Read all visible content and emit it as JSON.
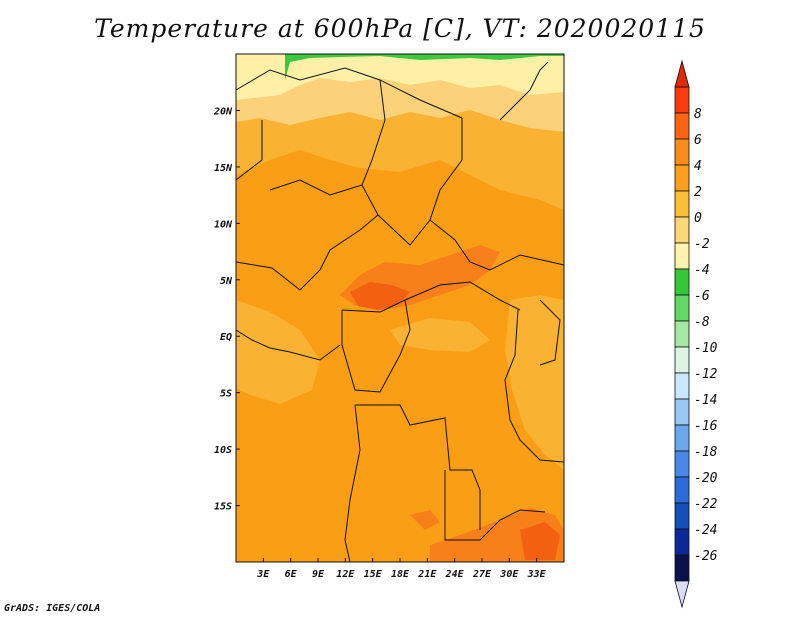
{
  "title": "Temperature at 600hPa [C], VT: 2020020115",
  "credit": "GrADS: IGES/COLA",
  "map": {
    "lon_range": [
      0,
      36
    ],
    "lat_range": [
      -20,
      25
    ],
    "lon_ticks": [
      {
        "value": 3,
        "label": "3E"
      },
      {
        "value": 6,
        "label": "6E"
      },
      {
        "value": 9,
        "label": "9E"
      },
      {
        "value": 12,
        "label": "12E"
      },
      {
        "value": 15,
        "label": "15E"
      },
      {
        "value": 18,
        "label": "18E"
      },
      {
        "value": 21,
        "label": "21E"
      },
      {
        "value": 24,
        "label": "24E"
      },
      {
        "value": 27,
        "label": "27E"
      },
      {
        "value": 30,
        "label": "30E"
      },
      {
        "value": 33,
        "label": "33E"
      }
    ],
    "lat_ticks": [
      {
        "value": 20,
        "label": "20N"
      },
      {
        "value": 15,
        "label": "15N"
      },
      {
        "value": 10,
        "label": "10N"
      },
      {
        "value": 5,
        "label": "5N"
      },
      {
        "value": 0,
        "label": "EQ"
      },
      {
        "value": -5,
        "label": "5S"
      },
      {
        "value": -10,
        "label": "10S"
      },
      {
        "value": -15,
        "label": "15S"
      }
    ]
  },
  "colorbar": {
    "labels": [
      "8",
      "6",
      "4",
      "2",
      "0",
      "-2",
      "-4",
      "-6",
      "-8",
      "-10",
      "-12",
      "-14",
      "-16",
      "-18",
      "-20",
      "-22",
      "-24",
      "-26"
    ],
    "colors": [
      "#fa3c0f",
      "#fa6414",
      "#fa8c1e",
      "#faa01e",
      "#fabe37",
      "#fad778",
      "#fff5aa",
      "#36c736",
      "#63d863",
      "#a3e8a3",
      "#dcf5e3",
      "#c8e8ff",
      "#98c8f8",
      "#6aa8f0",
      "#4a88e8",
      "#2a6cd8",
      "#1450b8",
      "#0a2896",
      "#08104e"
    ],
    "over_color": "#e0280a",
    "under_color": "#dcdcff"
  },
  "colors": {
    "base_field": "#fa9e16",
    "warm_field": "#fab232",
    "cool_field": "#fbd27a",
    "cold_field": "#fff0a8",
    "hot_field": "#f8801a",
    "peak_field": "#f26010",
    "green_field": "#3cc840",
    "border": "#111111"
  }
}
